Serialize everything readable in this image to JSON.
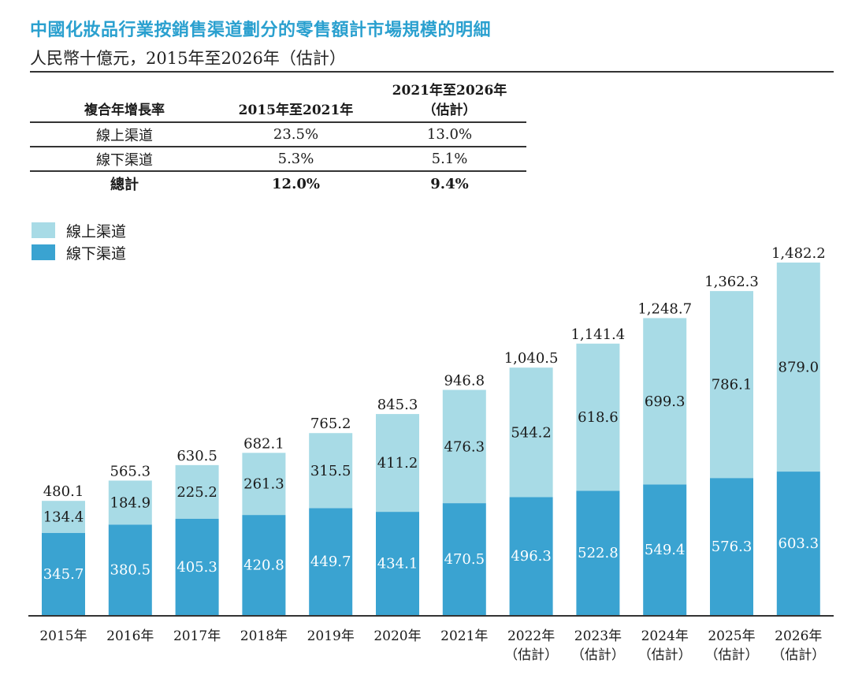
{
  "title": "中國化妝品行業按銷售渠道劃分的零售額計市場規模的明細",
  "subtitle": "人民幣十億元，2015年至2026年（估計）",
  "cagr_table": {
    "header": {
      "label": "複合年增長率",
      "period1": "2015年至2021年",
      "period2_line1": "2021年至2026年",
      "period2_line2": "（估計）"
    },
    "rows": [
      {
        "label": "線上渠道",
        "period1": "23.5%",
        "period2": "13.0%"
      },
      {
        "label": "線下渠道",
        "period1": "5.3%",
        "period2": "5.1%"
      },
      {
        "label": "總計",
        "period1": "12.0%",
        "period2": "9.4%"
      }
    ]
  },
  "legend": [
    {
      "label": "線上渠道",
      "color": "#a8dbe6"
    },
    {
      "label": "線下渠道",
      "color": "#3aa3d1"
    }
  ],
  "colors": {
    "title": "#2aa0cf",
    "online": "#a8dbe6",
    "offline": "#3aa3d1"
  },
  "chart_data": {
    "type": "bar",
    "stacked": true,
    "title": "中國化妝品行業按銷售渠道劃分的零售額計市場規模的明細",
    "subtitle": "人民幣十億元，2015年至2026年（估計）",
    "xlabel": "",
    "ylabel": "人民幣十億元",
    "ylim": [
      0,
      1482.2
    ],
    "grid": false,
    "legend_position": "top-left",
    "categories": [
      "2015年",
      "2016年",
      "2017年",
      "2018年",
      "2019年",
      "2020年",
      "2021年",
      "2022年",
      "2023年",
      "2024年",
      "2025年",
      "2026年"
    ],
    "category_notes": [
      "",
      "",
      "",
      "",
      "",
      "",
      "",
      "（估計）",
      "（估計）",
      "（估計）",
      "（估計）",
      "（估計）"
    ],
    "series": [
      {
        "name": "線下渠道",
        "values": [
          345.7,
          380.5,
          405.3,
          420.8,
          449.7,
          434.1,
          470.5,
          496.3,
          522.8,
          549.4,
          576.3,
          603.3
        ]
      },
      {
        "name": "線上渠道",
        "values": [
          134.4,
          184.9,
          225.2,
          261.3,
          315.5,
          411.2,
          476.3,
          544.2,
          618.6,
          699.3,
          786.1,
          879.0
        ]
      }
    ],
    "totals": [
      "480.1",
      "565.3",
      "630.5",
      "682.1",
      "765.2",
      "845.3",
      "946.8",
      "1,040.5",
      "1,141.4",
      "1,248.7",
      "1,362.3",
      "1,482.2"
    ],
    "offline_labels": [
      "345.7",
      "380.5",
      "405.3",
      "420.8",
      "449.7",
      "434.1",
      "470.5",
      "496.3",
      "522.8",
      "549.4",
      "576.3",
      "603.3"
    ],
    "online_labels": [
      "134.4",
      "184.9",
      "225.2",
      "261.3",
      "315.5",
      "411.2",
      "476.3",
      "544.2",
      "618.6",
      "699.3",
      "786.1",
      "879.0"
    ]
  }
}
